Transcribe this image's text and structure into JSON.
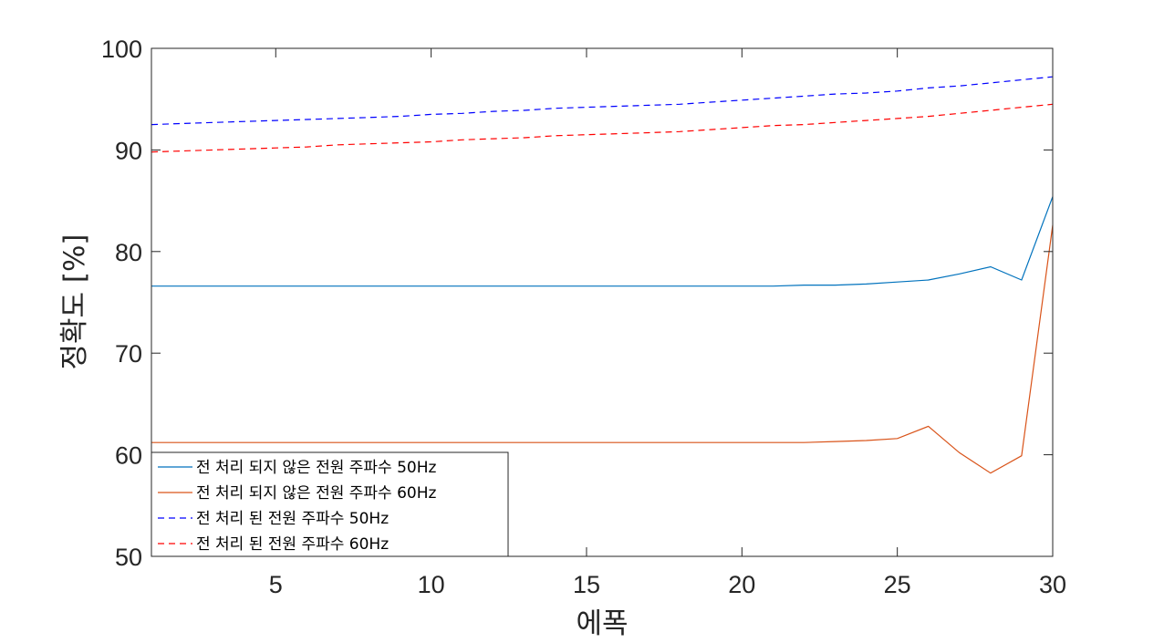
{
  "chart_data": {
    "type": "line",
    "xlabel": "에폭",
    "ylabel": "정확도 [%]",
    "xlim": [
      1,
      30
    ],
    "ylim": [
      50,
      100
    ],
    "xticks": [
      5,
      10,
      15,
      20,
      25,
      30
    ],
    "yticks": [
      50,
      60,
      70,
      80,
      90,
      100
    ],
    "xtick_labels": [
      "5",
      "10",
      "15",
      "20",
      "25",
      "30"
    ],
    "ytick_labels": [
      "50",
      "60",
      "70",
      "80",
      "90",
      "100"
    ],
    "grid": false,
    "legend_position": "bottom-left",
    "x": [
      1,
      2,
      3,
      4,
      5,
      6,
      7,
      8,
      9,
      10,
      11,
      12,
      13,
      14,
      15,
      16,
      17,
      18,
      19,
      20,
      21,
      22,
      23,
      24,
      25,
      26,
      27,
      28,
      29,
      30
    ],
    "series": [
      {
        "name": "전 처리 되지 않은 전원 주파수 50Hz",
        "color": "#0072BD",
        "dash": "solid",
        "values": [
          76.6,
          76.6,
          76.6,
          76.6,
          76.6,
          76.6,
          76.6,
          76.6,
          76.6,
          76.6,
          76.6,
          76.6,
          76.6,
          76.6,
          76.6,
          76.6,
          76.6,
          76.6,
          76.6,
          76.6,
          76.6,
          76.7,
          76.7,
          76.8,
          77.0,
          77.2,
          77.8,
          78.5,
          77.2,
          85.4
        ]
      },
      {
        "name": "전 처리 되지 않은 전원 주파수 60Hz",
        "color": "#D95319",
        "dash": "solid",
        "values": [
          61.2,
          61.2,
          61.2,
          61.2,
          61.2,
          61.2,
          61.2,
          61.2,
          61.2,
          61.2,
          61.2,
          61.2,
          61.2,
          61.2,
          61.2,
          61.2,
          61.2,
          61.2,
          61.2,
          61.2,
          61.2,
          61.2,
          61.3,
          61.4,
          61.6,
          62.8,
          60.2,
          58.2,
          59.9,
          82.6
        ]
      },
      {
        "name": "전 처리 된 전원 주파수 50Hz",
        "color": "#0000FF",
        "dash": "dashed",
        "values": [
          92.5,
          92.6,
          92.7,
          92.8,
          92.9,
          93.0,
          93.1,
          93.2,
          93.3,
          93.5,
          93.6,
          93.8,
          93.9,
          94.1,
          94.2,
          94.3,
          94.4,
          94.5,
          94.7,
          94.9,
          95.1,
          95.3,
          95.5,
          95.6,
          95.8,
          96.1,
          96.3,
          96.6,
          96.9,
          97.2
        ]
      },
      {
        "name": "전 처리 된 전원 주파수 60Hz",
        "color": "#FF0000",
        "dash": "dashed",
        "values": [
          89.8,
          89.9,
          90.0,
          90.1,
          90.2,
          90.3,
          90.5,
          90.6,
          90.7,
          90.8,
          91.0,
          91.1,
          91.2,
          91.4,
          91.5,
          91.6,
          91.7,
          91.8,
          92.0,
          92.2,
          92.4,
          92.5,
          92.7,
          92.9,
          93.1,
          93.3,
          93.6,
          93.9,
          94.2,
          94.5
        ]
      }
    ]
  }
}
